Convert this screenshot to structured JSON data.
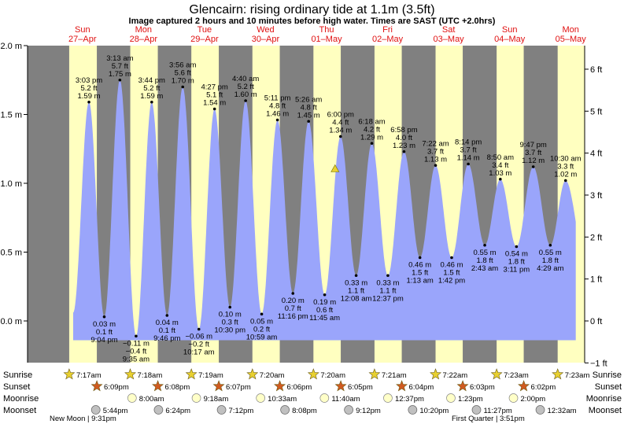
{
  "title": "Glencairn: rising  ordinary tide at 1.1m (3.5ft)",
  "subtitle": "Image captured 2 hours and 10 minutes before high water. Times are SAST (UTC +2.0hrs)",
  "colors": {
    "water": "#9aa5fb",
    "night": "#808080",
    "day": "#ffffc0",
    "day_label": "#e01010",
    "marker": "#e8d030",
    "sunrise_star": "#e8d030",
    "sunset_star": "#d05a20",
    "moonrise": "#ffffc8",
    "moonset": "#c0c0c0"
  },
  "days": [
    {
      "dow": "Sun",
      "date": "27–Apr"
    },
    {
      "dow": "Mon",
      "date": "28–Apr"
    },
    {
      "dow": "Tue",
      "date": "29–Apr"
    },
    {
      "dow": "Wed",
      "date": "30–Apr"
    },
    {
      "dow": "Thu",
      "date": "01–May"
    },
    {
      "dow": "Fri",
      "date": "02–May"
    },
    {
      "dow": "Sat",
      "date": "03–May"
    },
    {
      "dow": "Sun",
      "date": "04–May"
    },
    {
      "dow": "Mon",
      "date": "05–May"
    }
  ],
  "chart_data": {
    "type": "area",
    "title": "Glencairn: rising  ordinary tide at 1.1m (3.5ft)",
    "x_unit": "hours since 00:00 on 27-Apr (SAST)",
    "y_left": {
      "unit": "m",
      "range": [
        -0.32,
        2.0
      ],
      "ticks": [
        "2.0 m",
        "1.5 m",
        "1.0 m",
        "0.5 m",
        "0.0 m"
      ],
      "tick_values": [
        2.0,
        1.5,
        1.0,
        0.5,
        0.0
      ]
    },
    "y_right": {
      "unit": "ft",
      "ticks": [
        "6 ft",
        "5 ft",
        "4 ft",
        "3 ft",
        "2 ft",
        "1 ft",
        "0 ft",
        "−1 ft"
      ],
      "tick_values": [
        6,
        5,
        4,
        3,
        2,
        1,
        0,
        -1
      ]
    },
    "current_level_m": 1.1,
    "current_time": "Thu 01-May 15:50",
    "extremes": [
      {
        "type": "high",
        "day": 0,
        "time": "3:03 pm",
        "ft": "5.2 ft",
        "m": 1.59
      },
      {
        "type": "low",
        "day": 0,
        "time": "9:04 pm",
        "ft": "0.1 ft",
        "m": 0.03
      },
      {
        "type": "high",
        "day": 1,
        "time": "3:13 am",
        "ft": "5.7 ft",
        "m": 1.75
      },
      {
        "type": "low",
        "day": 1,
        "time": "9:35 am",
        "ft": "−0.4 ft",
        "m": -0.11
      },
      {
        "type": "high",
        "day": 1,
        "time": "3:44 pm",
        "ft": "5.2 ft",
        "m": 1.59
      },
      {
        "type": "low",
        "day": 1,
        "time": "9:46 pm",
        "ft": "0.1 ft",
        "m": 0.04
      },
      {
        "type": "high",
        "day": 2,
        "time": "3:56 am",
        "ft": "5.6 ft",
        "m": 1.7
      },
      {
        "type": "low",
        "day": 2,
        "time": "10:17 am",
        "ft": "−0.2 ft",
        "m": -0.06
      },
      {
        "type": "high",
        "day": 2,
        "time": "4:27 pm",
        "ft": "5.1 ft",
        "m": 1.54
      },
      {
        "type": "low",
        "day": 2,
        "time": "10:30 pm",
        "ft": "0.3 ft",
        "m": 0.1
      },
      {
        "type": "high",
        "day": 3,
        "time": "4:40 am",
        "ft": "5.2 ft",
        "m": 1.6
      },
      {
        "type": "low",
        "day": 3,
        "time": "10:59 am",
        "ft": "0.2 ft",
        "m": 0.05
      },
      {
        "type": "high",
        "day": 3,
        "time": "5:11 pm",
        "ft": "4.8 ft",
        "m": 1.46
      },
      {
        "type": "low",
        "day": 3,
        "time": "11:16 pm",
        "ft": "0.7 ft",
        "m": 0.2
      },
      {
        "type": "high",
        "day": 4,
        "time": "5:26 am",
        "ft": "4.8 ft",
        "m": 1.45
      },
      {
        "type": "low",
        "day": 4,
        "time": "11:45 am",
        "ft": "0.6 ft",
        "m": 0.19
      },
      {
        "type": "high",
        "day": 4,
        "time": "6:00 pm",
        "ft": "4.4 ft",
        "m": 1.34
      },
      {
        "type": "low",
        "day": 5,
        "time": "12:08 am",
        "ft": "1.1 ft",
        "m": 0.33
      },
      {
        "type": "high",
        "day": 5,
        "time": "6:18 am",
        "ft": "4.2 ft",
        "m": 1.29
      },
      {
        "type": "low",
        "day": 5,
        "time": "12:37 pm",
        "ft": "1.1 ft",
        "m": 0.33
      },
      {
        "type": "high",
        "day": 5,
        "time": "6:58 pm",
        "ft": "4.0 ft",
        "m": 1.23
      },
      {
        "type": "low",
        "day": 6,
        "time": "1:13 am",
        "ft": "1.5 ft",
        "m": 0.46
      },
      {
        "type": "high",
        "day": 6,
        "time": "7:22 am",
        "ft": "3.7 ft",
        "m": 1.13
      },
      {
        "type": "low",
        "day": 6,
        "time": "1:42 pm",
        "ft": "1.5 ft",
        "m": 0.46
      },
      {
        "type": "high",
        "day": 6,
        "time": "8:14 pm",
        "ft": "3.7 ft",
        "m": 1.14
      },
      {
        "type": "low",
        "day": 7,
        "time": "2:43 am",
        "ft": "1.8 ft",
        "m": 0.55
      },
      {
        "type": "high",
        "day": 7,
        "time": "8:50 am",
        "ft": "3.4 ft",
        "m": 1.03
      },
      {
        "type": "low",
        "day": 7,
        "time": "3:11 pm",
        "ft": "1.8 ft",
        "m": 0.54
      },
      {
        "type": "high",
        "day": 7,
        "time": "9:47 pm",
        "ft": "3.7 ft",
        "m": 1.12
      },
      {
        "type": "low",
        "day": 8,
        "time": "4:29 am",
        "ft": "1.8 ft",
        "m": 0.55
      },
      {
        "type": "high",
        "day": 8,
        "time": "10:30 am",
        "ft": "3.3 ft",
        "m": 1.02
      }
    ],
    "sunrise": [
      "7:17am",
      "7:18am",
      "7:19am",
      "7:20am",
      "7:20am",
      "7:21am",
      "7:22am",
      "7:23am",
      "7:23am"
    ],
    "sunset": [
      "6:09pm",
      "6:08pm",
      "6:07pm",
      "6:06pm",
      "6:05pm",
      "6:04pm",
      "6:03pm",
      "6:02pm"
    ],
    "moonrise": [
      "8:00am",
      "9:18am",
      "10:33am",
      "11:40am",
      "12:37pm",
      "1:23pm",
      "2:00pm"
    ],
    "moonset": [
      "5:44pm",
      "6:24pm",
      "7:12pm",
      "8:08pm",
      "9:12pm",
      "10:20pm",
      "11:27pm",
      "12:32am"
    ],
    "moon_phases": [
      {
        "label": "New Moon",
        "time": "9:31pm"
      },
      {
        "label": "First Quarter",
        "time": "3:51pm"
      }
    ]
  },
  "rows": {
    "sunrise_label": "Sunrise",
    "sunset_label": "Sunset",
    "moonrise_label": "Moonrise",
    "moonset_label": "Moonset"
  }
}
